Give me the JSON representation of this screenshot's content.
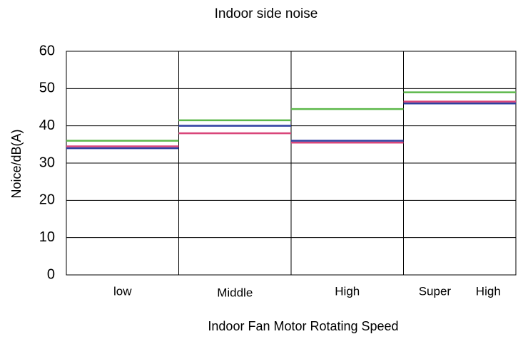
{
  "chart_data": {
    "type": "level",
    "title": "Indoor side noise",
    "x_label": "Indoor Fan Motor Rotating Speed",
    "y_label": "Noice/dB(A)",
    "categories": [
      "low",
      "Middle",
      "High",
      "Super High"
    ],
    "series": [
      {
        "color": "#5cb84a",
        "values": [
          36,
          41.5,
          44.5,
          49
        ]
      },
      {
        "color": "#d9467a",
        "values": [
          34.5,
          38,
          35.5,
          46.5
        ]
      },
      {
        "color": "#2e3fa0",
        "values": [
          34,
          40,
          36,
          46
        ]
      }
    ],
    "ylim": [
      0,
      60
    ],
    "yticks": [
      0,
      10,
      20,
      30,
      40,
      50,
      60
    ],
    "grid": true
  }
}
